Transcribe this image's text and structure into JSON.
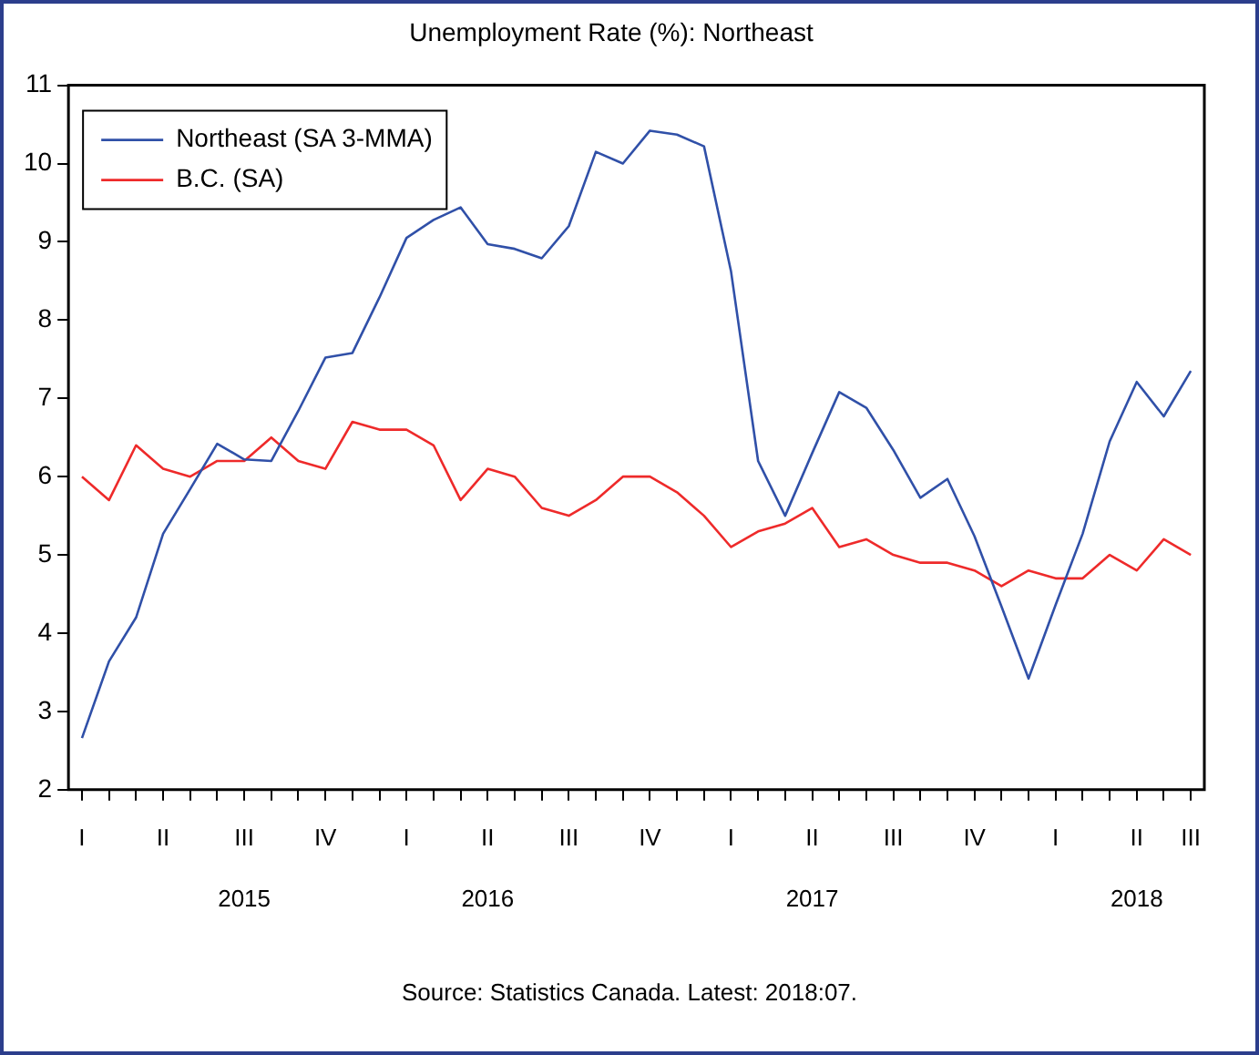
{
  "chart_data": {
    "type": "line",
    "title": "Unemployment Rate (%): Northeast",
    "categories": [
      "I",
      null,
      null,
      "II",
      null,
      null,
      "III\n2015",
      null,
      null,
      "IV",
      null,
      null,
      "I",
      null,
      null,
      "II\n2016",
      null,
      null,
      "III",
      null,
      null,
      "IV",
      null,
      null,
      "I",
      null,
      null,
      "II\n2017",
      null,
      null,
      "III",
      null,
      null,
      "IV",
      null,
      null,
      "I",
      null,
      null,
      "II\n2018",
      null,
      "III"
    ],
    "series": [
      {
        "name": "Northeast (SA 3-MMA)",
        "color": "#3050a8",
        "values": [
          2.66,
          3.64,
          4.2,
          5.27,
          5.84,
          6.42,
          6.22,
          6.2,
          6.84,
          7.52,
          7.58,
          8.29,
          9.05,
          9.28,
          9.44,
          8.97,
          8.91,
          8.79,
          9.2,
          10.15,
          10.0,
          10.42,
          10.37,
          10.22,
          8.62,
          6.2,
          5.5,
          6.3,
          7.08,
          6.88,
          6.34,
          5.73,
          5.97,
          5.24,
          4.34,
          3.42,
          4.36,
          5.27,
          6.45,
          7.21,
          6.77,
          7.35
        ]
      },
      {
        "name": "B.C. (SA)",
        "color": "#ee2a2a",
        "values": [
          6.0,
          5.7,
          6.4,
          6.1,
          6.0,
          6.2,
          6.2,
          6.5,
          6.2,
          6.1,
          6.7,
          6.6,
          6.6,
          6.4,
          5.7,
          6.1,
          6.0,
          5.6,
          5.5,
          5.7,
          6.0,
          6.0,
          5.8,
          5.5,
          5.1,
          5.3,
          5.4,
          5.6,
          5.1,
          5.2,
          5.0,
          4.9,
          4.9,
          4.8,
          4.6,
          4.8,
          4.7,
          4.7,
          5.0,
          4.8,
          5.2,
          5.0
        ]
      }
    ],
    "ylim": [
      2,
      11
    ],
    "yticks": [
      2,
      3,
      4,
      5,
      6,
      7,
      8,
      9,
      10,
      11
    ],
    "grid": false,
    "legend": "top left",
    "marker": "none",
    "line_style": "solid",
    "annotations": [
      "Source: Statistics Canada. Latest: 2018:07."
    ]
  }
}
